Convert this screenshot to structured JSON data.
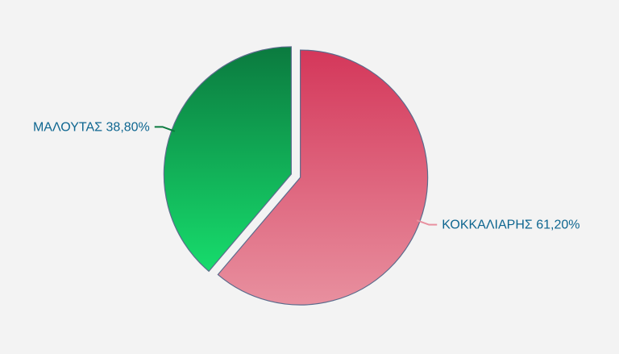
{
  "chart_data": {
    "type": "pie",
    "categories": [
      "ΚΟΚΚΑΛΙΑΡΗΣ",
      "ΜΑΛΟΥΤΑΣ"
    ],
    "values": [
      61.2,
      38.8
    ],
    "value_labels": [
      "61,20%",
      "38,80%"
    ],
    "colors": [
      [
        "#d4375a",
        "#e8909f"
      ],
      [
        "#0b7a3f",
        "#17dc6c"
      ]
    ]
  }
}
